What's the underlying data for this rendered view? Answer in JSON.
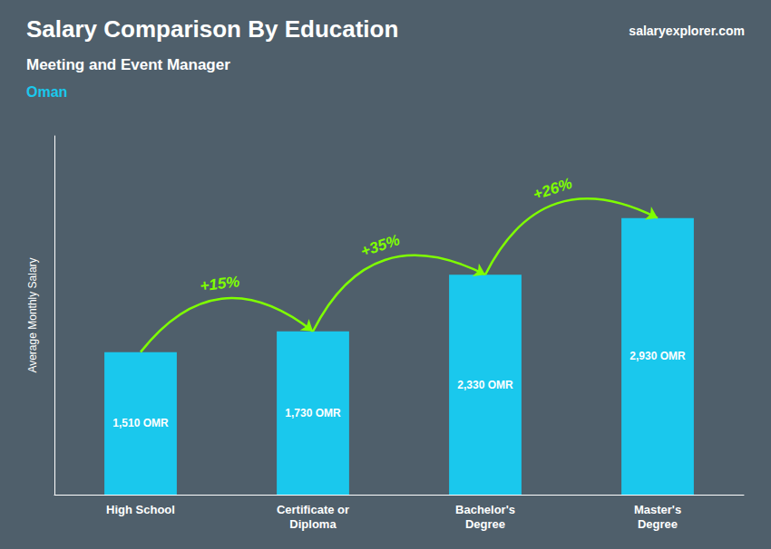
{
  "chart_data": {
    "type": "bar",
    "title": "Salary Comparison By Education",
    "subtitle": "Meeting and Event Manager",
    "country": "Oman",
    "source": "salaryexplorer.com",
    "ylabel": "Average Monthly Salary",
    "categories": [
      "High School",
      "Certificate or\nDiploma",
      "Bachelor's\nDegree",
      "Master's\nDegree"
    ],
    "values": [
      1510,
      1730,
      2330,
      2930
    ],
    "value_labels": [
      "1,510 OMR",
      "1,730 OMR",
      "2,330 OMR",
      "2,930 OMR"
    ],
    "data_labels": true,
    "color": "#1ac8ed",
    "annotations": [
      "+15%",
      "+35%",
      "+26%"
    ],
    "ylim": [
      0,
      3800
    ],
    "grid": false,
    "tick_labels": "x"
  }
}
